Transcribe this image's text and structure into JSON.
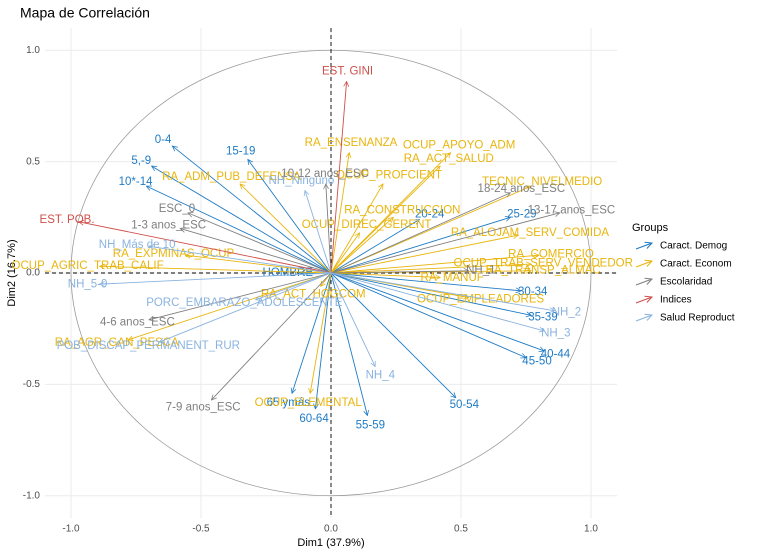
{
  "chart_data": {
    "type": "biplot",
    "title": "Mapa de Correlación",
    "x_label": "Dim1 (37.9%)",
    "y_label": "Dim2 (16.7%)",
    "legend_title": "Groups",
    "legend_position": "right",
    "xlim": [
      -1.1,
      1.1
    ],
    "ylim": [
      -1.1,
      1.1
    ],
    "grid": true,
    "xticks": [
      {
        "value": -1,
        "label": "-1.0"
      },
      {
        "value": -0.5,
        "label": "-0.5"
      },
      {
        "value": 0,
        "label": "0.0"
      },
      {
        "value": 0.5,
        "label": "0.5"
      },
      {
        "value": 1,
        "label": "1.0"
      }
    ],
    "yticks": [
      {
        "value": -1,
        "label": "-1.0"
      },
      {
        "value": -0.5,
        "label": "-0.5"
      },
      {
        "value": 0,
        "label": "0.0"
      },
      {
        "value": 0.5,
        "label": "0.5"
      },
      {
        "value": 1,
        "label": "1.0"
      }
    ],
    "series": [
      {
        "name": "Caract. Demog",
        "color": "#1f7bc4",
        "labels": [
          "0-4",
          "15-19",
          "5,-9",
          "10*-14",
          "20-24",
          "25-29",
          "30-34",
          "35-39",
          "40-44",
          "45-50",
          "50-54",
          "55-59",
          "60-64",
          "65 ymás",
          "HOMBRE"
        ],
        "x": [
          -0.61,
          -0.32,
          -0.69,
          -0.71,
          0.34,
          0.69,
          0.73,
          0.77,
          0.82,
          0.75,
          0.48,
          0.14,
          -0.06,
          -0.15,
          -0.12
        ],
        "y": [
          0.57,
          0.51,
          0.48,
          0.39,
          0.24,
          0.25,
          -0.08,
          -0.19,
          -0.35,
          -0.38,
          -0.56,
          -0.64,
          -0.61,
          -0.54,
          0.0
        ]
      },
      {
        "name": "Caract. Econom",
        "color": "#e8b50c",
        "labels": [
          "RA_ENSENANZA",
          "OCUP_APOYO_ADM",
          "RA_ACT_SALUD",
          "TECNIC_NIVELMEDIO",
          "OCUP_PROFCIENT",
          "RA_ADM_PUB_DEFENSA",
          "RA_CONSTRUCCION",
          "OCUP_DIREC_GERENT",
          "RA_ALOJAM_SERV_COMIDA",
          "RA_COMERCIO",
          "OCUP_TRAB_SERV_VENDEDOR",
          "RA_EXPMINAS_OCUP",
          "OCUP_AGRIC_TRAB_CALIF",
          "RA_MANUF",
          "RA_TRANSP_ALMAC",
          "RA_ACT_HOGCOM",
          "OCUP_EMPLEADORES",
          "RA_AGR_GAN_PESCA",
          "OCUP_ELEMENTAL"
        ],
        "x": [
          0.07,
          0.46,
          0.42,
          0.77,
          0.2,
          -0.35,
          0.24,
          0.11,
          0.72,
          0.8,
          0.77,
          -0.56,
          -0.89,
          0.42,
          0.77,
          -0.04,
          0.53,
          -0.78,
          -0.08
        ],
        "y": [
          0.54,
          0.54,
          0.48,
          0.39,
          0.4,
          0.4,
          0.25,
          0.18,
          0.17,
          0.08,
          0.04,
          0.08,
          0.03,
          -0.02,
          0.01,
          -0.06,
          -0.11,
          -0.3,
          -0.54
        ]
      },
      {
        "name": "Escolaridad",
        "color": "#7f7f7f",
        "labels": [
          "10-12 anos_ESC",
          "18-24 anos_ESC",
          "13-17 anos_ESC",
          "ESC_0",
          "1-3 anos_ESC",
          "4-6 anos_ESC",
          "7-9 anos_ESC",
          "NH_1"
        ],
        "x": [
          -0.02,
          0.69,
          0.88,
          -0.55,
          -0.58,
          -0.7,
          -0.46,
          0.53
        ],
        "y": [
          0.4,
          0.36,
          0.27,
          0.27,
          0.2,
          -0.21,
          -0.57,
          0.01
        ]
      },
      {
        "name": "Indices",
        "color": "#cf4f4a",
        "labels": [
          "EST. GINI",
          "EST. POB."
        ],
        "x": [
          0.06,
          -0.97
        ],
        "y": [
          0.86,
          0.23
        ]
      },
      {
        "name": "Salud Reproduct",
        "color": "#8ab3e0",
        "labels": [
          "NH_Más de 10",
          "NH_5-9",
          "NH_Ninguno",
          "PORC_EMBARAZO_ADOLESCENTE",
          "POB_DISCAP_PERMANENT_RUR",
          "NH_4",
          "NH_3",
          "NH_2"
        ],
        "x": [
          -0.7,
          -0.89,
          -0.1,
          -0.29,
          -0.66,
          0.17,
          0.82,
          0.86
        ],
        "y": [
          0.12,
          -0.05,
          0.37,
          -0.12,
          -0.31,
          -0.42,
          -0.26,
          -0.17
        ]
      }
    ]
  }
}
